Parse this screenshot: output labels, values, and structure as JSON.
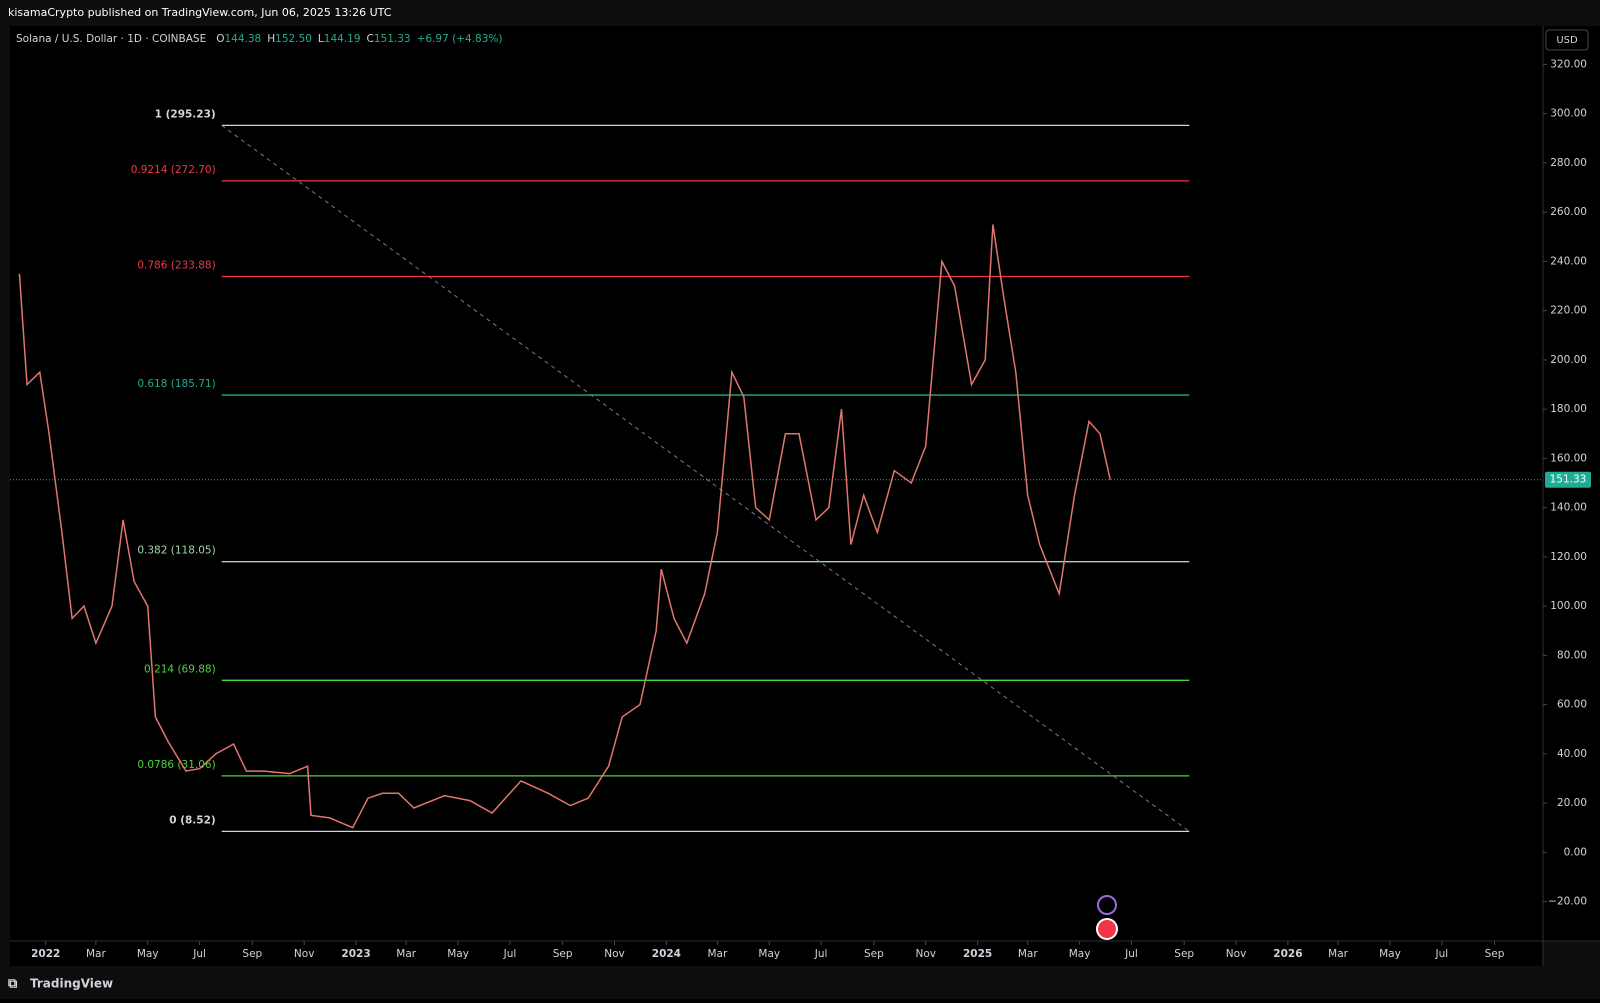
{
  "header": {
    "published": "kisamaCrypto published on TradingView.com, Jun 06, 2025 13:26 UTC",
    "symbol": "Solana / U.S. Dollar · 1D · COINBASE",
    "ohlc": [
      {
        "label": "O",
        "value": "144.38"
      },
      {
        "label": "H",
        "value": "152.50"
      },
      {
        "label": "L",
        "value": "144.19"
      },
      {
        "label": "C",
        "value": "151.33"
      }
    ],
    "change": "+6.97 (+4.83%)",
    "currency": "USD"
  },
  "footer": {
    "brand": "TradingView"
  },
  "chart_data": {
    "type": "line",
    "x": [
      "2021-12-01",
      "2021-12-10",
      "2021-12-25",
      "2022-01-05",
      "2022-01-20",
      "2022-02-01",
      "2022-02-15",
      "2022-03-01",
      "2022-03-20",
      "2022-04-02",
      "2022-04-15",
      "2022-05-01",
      "2022-05-10",
      "2022-05-25",
      "2022-06-15",
      "2022-07-01",
      "2022-07-20",
      "2022-08-10",
      "2022-08-25",
      "2022-09-15",
      "2022-10-15",
      "2022-11-05",
      "2022-11-09",
      "2022-12-01",
      "2022-12-28",
      "2023-01-15",
      "2023-02-01",
      "2023-02-20",
      "2023-03-10",
      "2023-04-15",
      "2023-05-15",
      "2023-06-10",
      "2023-07-14",
      "2023-08-15",
      "2023-09-10",
      "2023-10-01",
      "2023-10-25",
      "2023-11-10",
      "2023-12-01",
      "2023-12-20",
      "2023-12-26",
      "2024-01-10",
      "2024-01-25",
      "2024-02-15",
      "2024-03-01",
      "2024-03-18",
      "2024-04-01",
      "2024-04-15",
      "2024-05-01",
      "2024-05-20",
      "2024-06-05",
      "2024-06-25",
      "2024-07-10",
      "2024-07-25",
      "2024-08-05",
      "2024-08-20",
      "2024-09-05",
      "2024-09-25",
      "2024-10-15",
      "2024-11-01",
      "2024-11-20",
      "2024-12-05",
      "2024-12-25",
      "2025-01-10",
      "2025-01-19",
      "2025-02-01",
      "2025-02-15",
      "2025-03-01",
      "2025-03-15",
      "2025-04-07",
      "2025-04-25",
      "2025-05-12",
      "2025-05-25",
      "2025-06-06"
    ],
    "series": [
      {
        "name": "Close",
        "color": "#e0766c",
        "values": [
          235,
          190,
          195,
          170,
          130,
          95,
          100,
          85,
          100,
          135,
          110,
          100,
          55,
          45,
          33,
          34,
          40,
          44,
          33,
          33,
          32,
          35,
          15,
          14,
          10,
          22,
          24,
          24,
          18,
          23,
          21,
          16,
          29,
          24,
          19,
          22,
          35,
          55,
          60,
          90,
          115,
          95,
          85,
          105,
          130,
          195,
          185,
          140,
          135,
          170,
          170,
          135,
          140,
          180,
          125,
          145,
          130,
          155,
          150,
          165,
          240,
          230,
          190,
          200,
          255,
          225,
          195,
          145,
          125,
          105,
          145,
          175,
          170,
          151.33
        ]
      }
    ],
    "last_price": 151.33,
    "last_price_color": "#22ab94",
    "xlim": [
      "2021-11-20",
      "2026-10-28"
    ],
    "xticks": [
      {
        "value": "2022-01-01",
        "label": "2022"
      },
      {
        "value": "2022-03-01",
        "label": "Mar"
      },
      {
        "value": "2022-05-01",
        "label": "May"
      },
      {
        "value": "2022-07-01",
        "label": "Jul"
      },
      {
        "value": "2022-09-01",
        "label": "Sep"
      },
      {
        "value": "2022-11-01",
        "label": "Nov"
      },
      {
        "value": "2023-01-01",
        "label": "2023"
      },
      {
        "value": "2023-03-01",
        "label": "Mar"
      },
      {
        "value": "2023-05-01",
        "label": "May"
      },
      {
        "value": "2023-07-01",
        "label": "Jul"
      },
      {
        "value": "2023-09-01",
        "label": "Sep"
      },
      {
        "value": "2023-11-01",
        "label": "Nov"
      },
      {
        "value": "2024-01-01",
        "label": "2024"
      },
      {
        "value": "2024-03-01",
        "label": "Mar"
      },
      {
        "value": "2024-05-01",
        "label": "May"
      },
      {
        "value": "2024-07-01",
        "label": "Jul"
      },
      {
        "value": "2024-09-01",
        "label": "Sep"
      },
      {
        "value": "2024-11-01",
        "label": "Nov"
      },
      {
        "value": "2025-01-01",
        "label": "2025"
      },
      {
        "value": "2025-03-01",
        "label": "Mar"
      },
      {
        "value": "2025-05-01",
        "label": "May"
      },
      {
        "value": "2025-07-01",
        "label": "Jul"
      },
      {
        "value": "2025-09-01",
        "label": "Sep"
      },
      {
        "value": "2025-11-01",
        "label": "Nov"
      },
      {
        "value": "2026-01-01",
        "label": "2026"
      },
      {
        "value": "2026-03-01",
        "label": "Mar"
      },
      {
        "value": "2026-05-01",
        "label": "May"
      },
      {
        "value": "2026-07-01",
        "label": "Jul"
      },
      {
        "value": "2026-09-01",
        "label": "Sep"
      }
    ],
    "ylim": [
      -36,
      335.6
    ],
    "yticks": [
      {
        "value": -20,
        "label": "−20.00"
      },
      {
        "value": 0,
        "label": "0.00"
      },
      {
        "value": 20,
        "label": "20.00"
      },
      {
        "value": 40,
        "label": "40.00"
      },
      {
        "value": 60,
        "label": "60.00"
      },
      {
        "value": 80,
        "label": "80.00"
      },
      {
        "value": 100,
        "label": "100.00"
      },
      {
        "value": 120,
        "label": "120.00"
      },
      {
        "value": 140,
        "label": "140.00"
      },
      {
        "value": 160,
        "label": "160.00"
      },
      {
        "value": 180,
        "label": "180.00"
      },
      {
        "value": 200,
        "label": "200.00"
      },
      {
        "value": 220,
        "label": "220.00"
      },
      {
        "value": 240,
        "label": "240.00"
      },
      {
        "value": 260,
        "label": "260.00"
      },
      {
        "value": 280,
        "label": "280.00"
      },
      {
        "value": 300,
        "label": "300.00"
      },
      {
        "value": 320,
        "label": "320.00"
      }
    ],
    "fib_range": [
      "2022-07-27",
      "2025-09-07"
    ],
    "fib_levels": [
      {
        "label": "1 (295.23)",
        "value": 295.23,
        "color": "#d1d4dc"
      },
      {
        "label": "0.9214 (272.70)",
        "value": 272.7,
        "color": "#f23645"
      },
      {
        "label": "0.786 (233.88)",
        "value": 233.88,
        "color": "#f23645"
      },
      {
        "label": "0.618 (185.71)",
        "value": 185.71,
        "color": "#22ab94"
      },
      {
        "label": "0.382 (118.05)",
        "value": 118.05,
        "color": "#a5d6a7"
      },
      {
        "label": "0.214 (69.88)",
        "value": 69.88,
        "color": "#4cd43c"
      },
      {
        "label": "0.0786 (31.06)",
        "value": 31.06,
        "color": "#4cd43c"
      },
      {
        "label": "0 (8.52)",
        "value": 8.52,
        "color": "#d1d4dc"
      }
    ]
  }
}
